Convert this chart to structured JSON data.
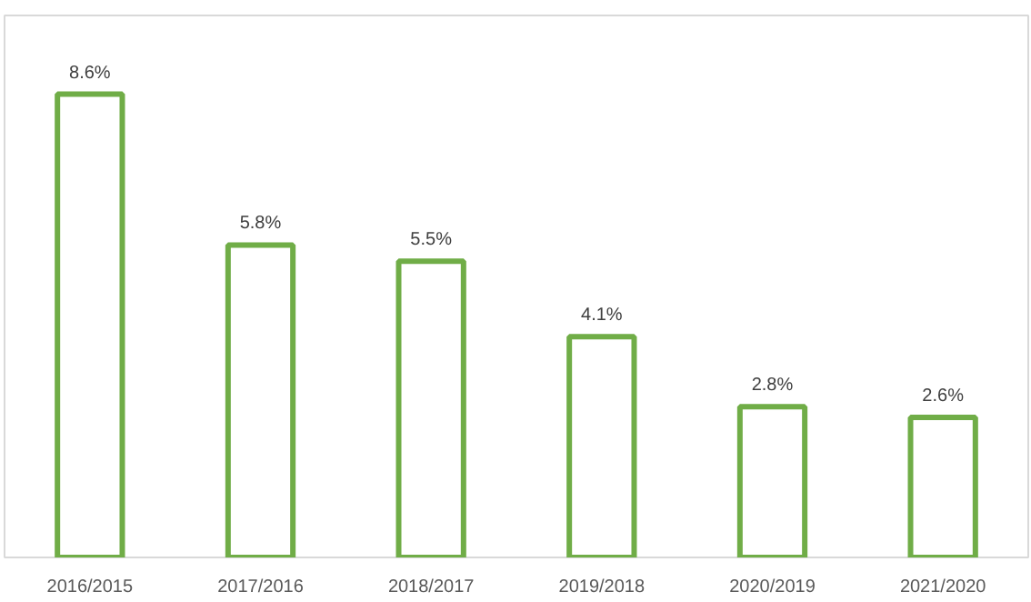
{
  "chart_data": {
    "type": "bar",
    "categories": [
      "2016/2015",
      "2017/2016",
      "2018/2017",
      "2019/2018",
      "2020/2019",
      "2021/2020"
    ],
    "values": [
      8.6,
      5.8,
      5.5,
      4.1,
      2.8,
      2.6
    ],
    "value_labels": [
      "8.6%",
      "5.8%",
      "5.5%",
      "4.1%",
      "2.8%",
      "2.6%"
    ],
    "color": "#70ad47"
  }
}
